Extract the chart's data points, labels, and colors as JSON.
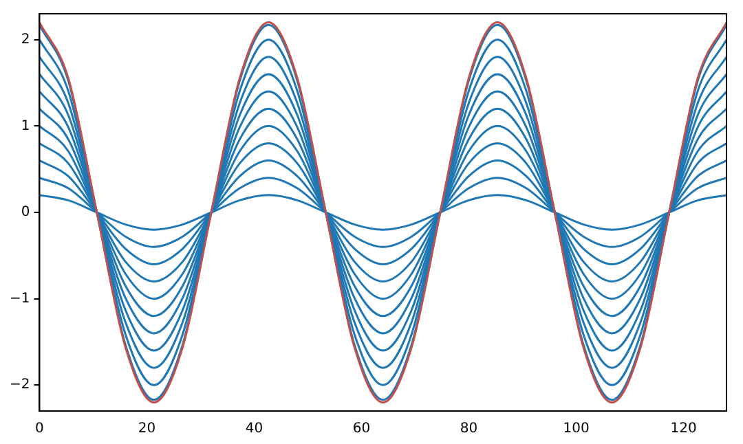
{
  "chart_data": {
    "type": "line",
    "x": [
      0,
      5.33,
      10.67,
      16,
      21.33,
      26.67,
      32,
      37.33,
      42.67,
      48,
      53.33,
      58.67,
      64,
      69.33,
      74.67,
      80,
      85.33,
      90.67,
      96,
      101.33,
      106.67,
      112,
      117.33,
      122.67,
      128
    ],
    "series": [
      {
        "color": "#c0504d",
        "values": [
          2.2,
          1.56,
          0,
          -1.56,
          -2.2,
          -1.56,
          0,
          1.56,
          2.2,
          1.56,
          0,
          -1.56,
          -2.2,
          -1.56,
          0,
          1.56,
          2.2,
          1.56,
          0,
          -1.56,
          -2.2,
          -1.56,
          0,
          1.56,
          2.2
        ]
      },
      {
        "color": "#1f77b4",
        "values": [
          2.17,
          1.53,
          0,
          -1.53,
          -2.17,
          -1.53,
          0,
          1.53,
          2.17,
          1.53,
          0,
          -1.53,
          -2.17,
          -1.53,
          0,
          1.53,
          2.17,
          1.53,
          0,
          -1.53,
          -2.17,
          -1.53,
          0,
          1.53,
          2.17
        ]
      },
      {
        "color": "#1f77b4",
        "values": [
          2.0,
          1.41,
          0,
          -1.41,
          -2.0,
          -1.41,
          0,
          1.41,
          2.0,
          1.41,
          0,
          -1.41,
          -2.0,
          -1.41,
          0,
          1.41,
          2.0,
          1.41,
          0,
          -1.41,
          -2.0,
          -1.41,
          0,
          1.41,
          2.0
        ]
      },
      {
        "color": "#1f77b4",
        "values": [
          1.8,
          1.27,
          0,
          -1.27,
          -1.8,
          -1.27,
          0,
          1.27,
          1.8,
          1.27,
          0,
          -1.27,
          -1.8,
          -1.27,
          0,
          1.27,
          1.8,
          1.27,
          0,
          -1.27,
          -1.8,
          -1.27,
          0,
          1.27,
          1.8
        ]
      },
      {
        "color": "#1f77b4",
        "values": [
          1.6,
          1.13,
          0,
          -1.13,
          -1.6,
          -1.13,
          0,
          1.13,
          1.6,
          1.13,
          0,
          -1.13,
          -1.6,
          -1.13,
          0,
          1.13,
          1.6,
          1.13,
          0,
          -1.13,
          -1.6,
          -1.13,
          0,
          1.13,
          1.6
        ]
      },
      {
        "color": "#1f77b4",
        "values": [
          1.4,
          0.99,
          0,
          -0.99,
          -1.4,
          -0.99,
          0,
          0.99,
          1.4,
          0.99,
          0,
          -0.99,
          -1.4,
          -0.99,
          0,
          0.99,
          1.4,
          0.99,
          0,
          -0.99,
          -1.4,
          -0.99,
          0,
          0.99,
          1.4
        ]
      },
      {
        "color": "#1f77b4",
        "values": [
          1.2,
          0.85,
          0,
          -0.85,
          -1.2,
          -0.85,
          0,
          0.85,
          1.2,
          0.85,
          0,
          -0.85,
          -1.2,
          -0.85,
          0,
          0.85,
          1.2,
          0.85,
          0,
          -0.85,
          -1.2,
          -0.85,
          0,
          0.85,
          1.2
        ]
      },
      {
        "color": "#1f77b4",
        "values": [
          1.0,
          0.71,
          0,
          -0.71,
          -1.0,
          -0.71,
          0,
          0.71,
          1.0,
          0.71,
          0,
          -0.71,
          -1.0,
          -0.71,
          0,
          0.71,
          1.0,
          0.71,
          0,
          -0.71,
          -1.0,
          -0.71,
          0,
          0.71,
          1.0
        ]
      },
      {
        "color": "#1f77b4",
        "values": [
          0.8,
          0.57,
          0,
          -0.57,
          -0.8,
          -0.57,
          0,
          0.57,
          0.8,
          0.57,
          0,
          -0.57,
          -0.8,
          -0.57,
          0,
          0.57,
          0.8,
          0.57,
          0,
          -0.57,
          -0.8,
          -0.57,
          0,
          0.57,
          0.8
        ]
      },
      {
        "color": "#1f77b4",
        "values": [
          0.6,
          0.42,
          0,
          -0.42,
          -0.6,
          -0.42,
          0,
          0.42,
          0.6,
          0.42,
          0,
          -0.42,
          -0.6,
          -0.42,
          0,
          0.42,
          0.6,
          0.42,
          0,
          -0.42,
          -0.6,
          -0.42,
          0,
          0.42,
          0.6
        ]
      },
      {
        "color": "#1f77b4",
        "values": [
          0.4,
          0.28,
          0,
          -0.28,
          -0.4,
          -0.28,
          0,
          0.28,
          0.4,
          0.28,
          0,
          -0.28,
          -0.4,
          -0.28,
          0,
          0.28,
          0.4,
          0.28,
          0,
          -0.28,
          -0.4,
          -0.28,
          0,
          0.28,
          0.4
        ]
      },
      {
        "color": "#1f77b4",
        "values": [
          0.2,
          0.14,
          0,
          -0.14,
          -0.2,
          -0.14,
          0,
          0.14,
          0.2,
          0.14,
          0,
          -0.14,
          -0.2,
          -0.14,
          0,
          0.14,
          0.2,
          0.14,
          0,
          -0.14,
          -0.2,
          -0.14,
          0,
          0.14,
          0.2
        ]
      }
    ],
    "xlim": [
      0,
      128
    ],
    "xticks": [
      0,
      20,
      40,
      60,
      80,
      100,
      120
    ],
    "ylim": [
      -2.3,
      2.3
    ],
    "yticks": [
      -2,
      -1,
      0,
      1,
      2
    ],
    "grid": false,
    "legend": false,
    "marker": "none",
    "line_style": "solid"
  }
}
